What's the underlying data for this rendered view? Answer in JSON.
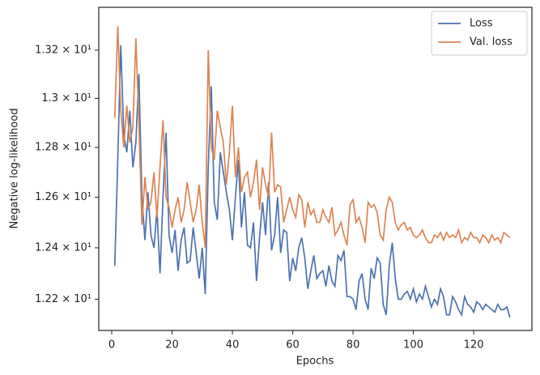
{
  "chart_data": {
    "type": "line",
    "xlabel": "Epochs",
    "ylabel": "Negative log-likelihood",
    "x": [
      1,
      2,
      3,
      4,
      5,
      6,
      7,
      8,
      9,
      10,
      11,
      12,
      13,
      14,
      15,
      16,
      17,
      18,
      19,
      20,
      21,
      22,
      23,
      24,
      25,
      26,
      27,
      28,
      29,
      30,
      31,
      32,
      33,
      34,
      35,
      36,
      37,
      38,
      39,
      40,
      41,
      42,
      43,
      44,
      45,
      46,
      47,
      48,
      49,
      50,
      51,
      52,
      53,
      54,
      55,
      56,
      57,
      58,
      59,
      60,
      61,
      62,
      63,
      64,
      65,
      66,
      67,
      68,
      69,
      70,
      71,
      72,
      73,
      74,
      75,
      76,
      77,
      78,
      79,
      80,
      81,
      82,
      83,
      84,
      85,
      86,
      87,
      88,
      89,
      90,
      91,
      92,
      93,
      94,
      95,
      96,
      97,
      98,
      99,
      100,
      101,
      102,
      103,
      104,
      105,
      106,
      107,
      108,
      109,
      110,
      111,
      112,
      113,
      114,
      115,
      116,
      117,
      118,
      119,
      120,
      121,
      122,
      123,
      124,
      125,
      126,
      127,
      128,
      129,
      130,
      131,
      132
    ],
    "series": [
      {
        "name": "Loss",
        "color": "#4c72b0",
        "values": [
          12.33,
          12.75,
          13.22,
          12.85,
          12.78,
          12.95,
          12.72,
          12.82,
          13.1,
          12.6,
          12.43,
          12.62,
          12.45,
          12.4,
          12.55,
          12.3,
          12.6,
          12.86,
          12.45,
          12.38,
          12.47,
          12.31,
          12.43,
          12.48,
          12.34,
          12.35,
          12.48,
          12.38,
          12.28,
          12.4,
          12.22,
          12.72,
          13.05,
          12.58,
          12.51,
          12.78,
          12.7,
          12.62,
          12.55,
          12.43,
          12.6,
          12.75,
          12.48,
          12.62,
          12.41,
          12.4,
          12.5,
          12.27,
          12.44,
          12.58,
          12.45,
          12.66,
          12.39,
          12.45,
          12.6,
          12.38,
          12.47,
          12.46,
          12.27,
          12.36,
          12.31,
          12.4,
          12.44,
          12.36,
          12.24,
          12.31,
          12.37,
          12.28,
          12.3,
          12.31,
          12.25,
          12.33,
          12.27,
          12.25,
          12.37,
          12.35,
          12.39,
          12.21,
          12.21,
          12.2,
          12.16,
          12.27,
          12.3,
          12.2,
          12.16,
          12.32,
          12.28,
          12.36,
          12.34,
          12.18,
          12.14,
          12.33,
          12.42,
          12.28,
          12.2,
          12.2,
          12.22,
          12.23,
          12.2,
          12.24,
          12.19,
          12.22,
          12.2,
          12.25,
          12.21,
          12.17,
          12.2,
          12.18,
          12.24,
          12.21,
          12.14,
          12.14,
          12.21,
          12.19,
          12.16,
          12.14,
          12.21,
          12.18,
          12.17,
          12.15,
          12.19,
          12.18,
          12.16,
          12.18,
          12.17,
          12.16,
          12.15,
          12.18,
          12.16,
          12.16,
          12.17,
          12.13
        ]
      },
      {
        "name": "Val. loss",
        "color": "#dd8452",
        "values": [
          12.92,
          13.3,
          12.95,
          12.8,
          12.97,
          12.82,
          12.88,
          13.25,
          12.9,
          12.49,
          12.68,
          12.55,
          12.58,
          12.7,
          12.52,
          12.72,
          12.91,
          12.6,
          12.56,
          12.48,
          12.55,
          12.6,
          12.5,
          12.55,
          12.66,
          12.58,
          12.5,
          12.55,
          12.65,
          12.5,
          12.4,
          13.2,
          12.8,
          12.75,
          12.95,
          12.88,
          12.82,
          12.65,
          12.78,
          12.97,
          12.68,
          12.8,
          12.62,
          12.68,
          12.7,
          12.6,
          12.66,
          12.75,
          12.55,
          12.72,
          12.65,
          12.6,
          12.86,
          12.62,
          12.65,
          12.64,
          12.5,
          12.55,
          12.6,
          12.55,
          12.52,
          12.61,
          12.59,
          12.48,
          12.58,
          12.53,
          12.55,
          12.5,
          12.5,
          12.55,
          12.52,
          12.5,
          12.56,
          12.45,
          12.47,
          12.5,
          12.45,
          12.41,
          12.57,
          12.59,
          12.5,
          12.52,
          12.48,
          12.42,
          12.58,
          12.56,
          12.57,
          12.54,
          12.45,
          12.43,
          12.55,
          12.6,
          12.58,
          12.5,
          12.47,
          12.49,
          12.5,
          12.47,
          12.48,
          12.45,
          12.44,
          12.45,
          12.47,
          12.44,
          12.42,
          12.42,
          12.45,
          12.44,
          12.46,
          12.43,
          12.46,
          12.44,
          12.45,
          12.44,
          12.47,
          12.42,
          12.44,
          12.43,
          12.46,
          12.44,
          12.44,
          12.42,
          12.45,
          12.44,
          12.42,
          12.45,
          12.43,
          12.44,
          12.42,
          12.46,
          12.45,
          12.44
        ]
      }
    ],
    "xlim": [
      -4.3,
      139.3
    ],
    "xticks": [
      0,
      20,
      40,
      60,
      80,
      100,
      120
    ],
    "ylim": [
      12.08,
      13.38
    ],
    "ylog": true,
    "yticks": [
      {
        "value": 12.2,
        "label": "1.22 × 10¹"
      },
      {
        "value": 12.4,
        "label": "1.24 × 10¹"
      },
      {
        "value": 12.6,
        "label": "1.26 × 10¹"
      },
      {
        "value": 12.8,
        "label": "1.28 × 10¹"
      },
      {
        "value": 13.0,
        "label": "1.3 × 10¹"
      },
      {
        "value": 13.2,
        "label": "1.32 × 10¹"
      }
    ],
    "legend": "upper right",
    "grid": false
  }
}
